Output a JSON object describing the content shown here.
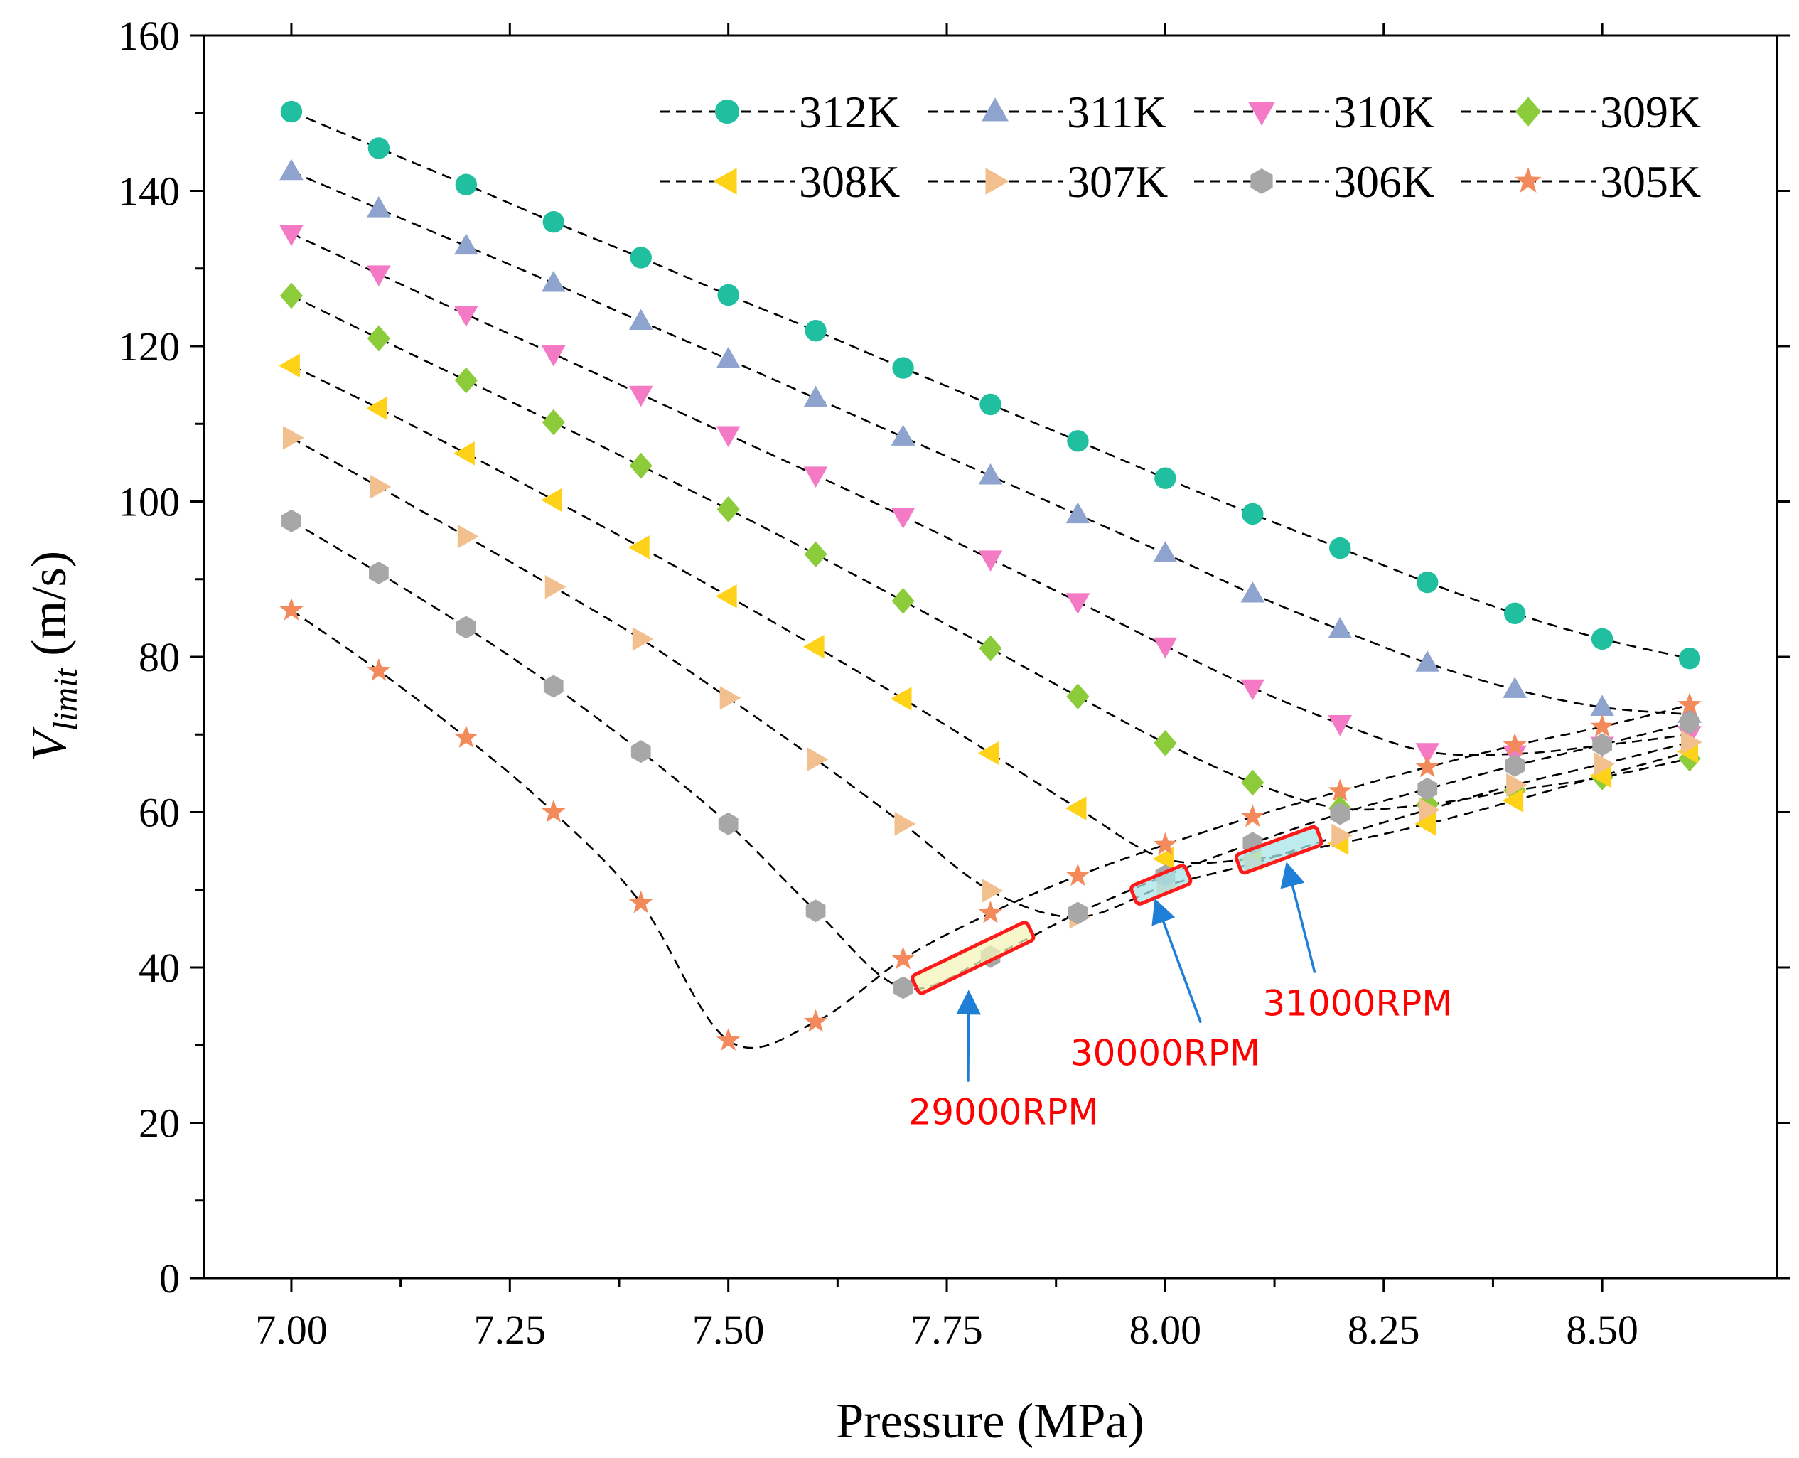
{
  "chart_data": {
    "type": "scatter",
    "title": "",
    "xlabel": "Pressure (MPa)",
    "ylabel_main": "V",
    "ylabel_sub": "limit",
    "ylabel_unit": " (m/s)",
    "xlim": [
      6.9,
      8.7
    ],
    "ylim": [
      0,
      160
    ],
    "xticks": [
      7.0,
      7.25,
      7.5,
      7.75,
      8.0,
      8.25,
      8.5
    ],
    "xtick_labels": [
      "7.00",
      "7.25",
      "7.50",
      "7.75",
      "8.00",
      "8.25",
      "8.50"
    ],
    "yticks": [
      0,
      20,
      40,
      60,
      80,
      100,
      120,
      140,
      160
    ],
    "ytick_labels": [
      "0",
      "20",
      "40",
      "60",
      "80",
      "100",
      "120",
      "140",
      "160"
    ],
    "grid": false,
    "legend_position": "top-right",
    "x": [
      7.0,
      7.1,
      7.2,
      7.3,
      7.4,
      7.5,
      7.6,
      7.7,
      7.8,
      7.9,
      8.0,
      8.1,
      8.2,
      8.3,
      8.4,
      8.5,
      8.6
    ],
    "series": [
      {
        "name": "312K",
        "marker": "circle",
        "color": "#1fbfa0",
        "values": [
          150.2,
          145.5,
          140.8,
          136.0,
          131.4,
          126.6,
          122.0,
          117.2,
          112.5,
          107.8,
          103.0,
          98.4,
          94.0,
          89.6,
          85.6,
          82.3,
          79.8
        ]
      },
      {
        "name": "311K",
        "marker": "triangle-up",
        "color": "#8ea4cf",
        "values": [
          142.5,
          137.7,
          132.9,
          128.1,
          123.2,
          118.3,
          113.3,
          108.3,
          103.3,
          98.3,
          93.3,
          88.1,
          83.5,
          79.2,
          75.8,
          73.5,
          72.6
        ]
      },
      {
        "name": "310K",
        "marker": "triangle-down",
        "color": "#f47ac6",
        "values": [
          134.5,
          129.3,
          124.1,
          119.0,
          113.8,
          108.6,
          103.4,
          98.1,
          92.6,
          87.1,
          81.4,
          76.0,
          71.4,
          67.8,
          67.5,
          68.6,
          70.0
        ]
      },
      {
        "name": "309K",
        "marker": "diamond",
        "color": "#8ccc3b",
        "values": [
          126.5,
          121.0,
          115.6,
          110.2,
          104.6,
          99.0,
          93.2,
          87.2,
          81.1,
          74.9,
          68.9,
          63.8,
          60.5,
          61.0,
          62.8,
          64.5,
          66.9
        ]
      },
      {
        "name": "308K",
        "marker": "triangle-left",
        "color": "#ffd21a",
        "values": [
          117.5,
          112.0,
          106.2,
          100.2,
          94.1,
          87.8,
          81.3,
          74.6,
          67.6,
          60.5,
          54.0,
          54.0,
          56.0,
          58.5,
          61.5,
          64.7,
          67.8
        ]
      },
      {
        "name": "307K",
        "marker": "triangle-right",
        "color": "#f2c08e",
        "values": [
          108.2,
          101.9,
          95.5,
          89.0,
          82.3,
          74.7,
          66.8,
          58.5,
          49.9,
          46.5,
          50.5,
          53.4,
          57.0,
          60.3,
          63.5,
          66.2,
          69.0
        ]
      },
      {
        "name": "306K",
        "marker": "hexagon",
        "color": "#a7a7a7",
        "values": [
          97.5,
          90.8,
          83.8,
          76.2,
          67.8,
          58.5,
          47.3,
          37.4,
          41.4,
          47.0,
          51.8,
          56.0,
          59.8,
          63.0,
          66.0,
          68.7,
          71.5
        ]
      },
      {
        "name": "305K",
        "marker": "star",
        "color": "#f28a5c",
        "values": [
          86.0,
          78.2,
          69.6,
          60.0,
          48.3,
          30.6,
          33.0,
          41.1,
          47.0,
          51.8,
          55.8,
          59.4,
          62.7,
          65.8,
          68.6,
          71.0,
          73.8
        ]
      }
    ],
    "annotations": [
      {
        "label": "29000RPM",
        "x_range": [
          7.72,
          7.84
        ],
        "y_range": [
          38.0,
          44.5
        ],
        "fill": "#f3f4b8",
        "text_at": [
          7.815,
          19.8
        ],
        "arrow_to": [
          7.775,
          36.5
        ]
      },
      {
        "label": "30000RPM",
        "x_range": [
          7.97,
          8.02
        ],
        "y_range": [
          49.5,
          51.8
        ],
        "fill": "#a8e6e8",
        "text_at": [
          8.0,
          27.4
        ],
        "arrow_to": [
          7.99,
          48.3
        ]
      },
      {
        "label": "31000RPM",
        "x_range": [
          8.09,
          8.17
        ],
        "y_range": [
          53.5,
          56.8
        ],
        "fill": "#a8e6e8",
        "text_at": [
          8.22,
          33.8
        ],
        "arrow_to": [
          8.14,
          53.0
        ]
      }
    ]
  }
}
